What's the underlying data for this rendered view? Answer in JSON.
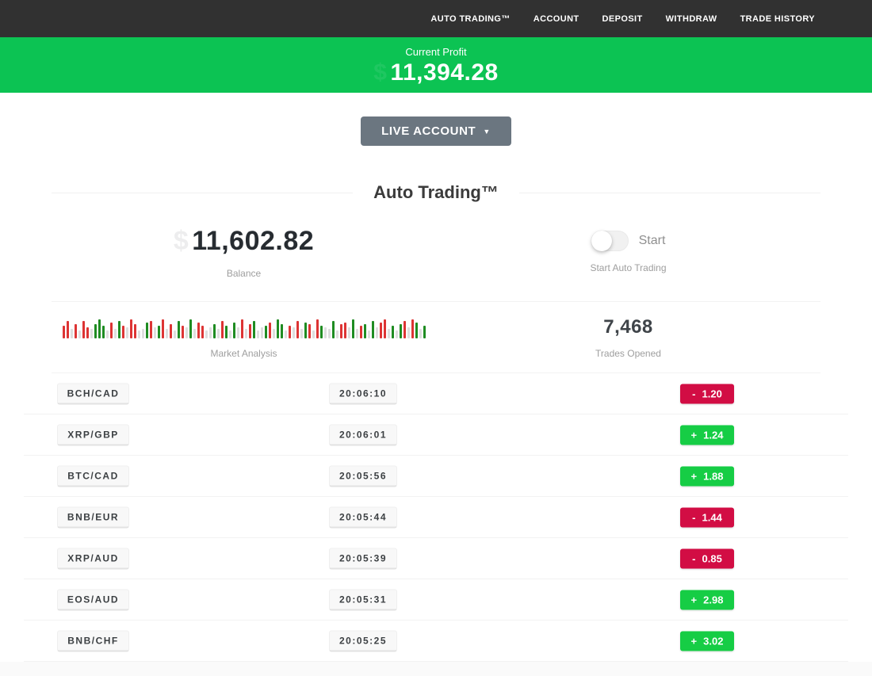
{
  "nav": {
    "items": [
      {
        "label": "AUTO TRADING™"
      },
      {
        "label": "ACCOUNT"
      },
      {
        "label": "DEPOSIT"
      },
      {
        "label": "WITHDRAW"
      },
      {
        "label": "TRADE HISTORY"
      }
    ]
  },
  "banner": {
    "label": "Current Profit",
    "currency_hint": "$",
    "value": "11,394.28"
  },
  "account_selector": {
    "label": "LIVE ACCOUNT",
    "caret": "▼"
  },
  "page": {
    "title": "Auto Trading™"
  },
  "stats": {
    "balance": {
      "currency_hint": "$",
      "value": "11,602.82",
      "label": "Balance"
    },
    "auto_trading": {
      "toggle_label": "Start",
      "caption": "Start Auto Trading",
      "state": "off"
    },
    "market": {
      "label": "Market Analysis"
    },
    "trades_opened": {
      "value": "7,468",
      "label": "Trades Opened"
    }
  },
  "market_chart": {
    "bars": [
      "r16",
      "r22",
      "n12",
      "r18",
      "n10",
      "r22",
      "r14",
      "n12",
      "g18",
      "g24",
      "g16",
      "n10",
      "r20",
      "n12",
      "g22",
      "r16",
      "n14",
      "r24",
      "r18",
      "n10",
      "n12",
      "g20",
      "r22",
      "n14",
      "g16",
      "r24",
      "n12",
      "r18",
      "n10",
      "g22",
      "r16",
      "n14",
      "g24",
      "n12",
      "r20",
      "r16",
      "n10",
      "n14",
      "g18",
      "n12",
      "r22",
      "g16",
      "n10",
      "g20",
      "n14",
      "r24",
      "n12",
      "r18",
      "g22",
      "n10",
      "n14",
      "g16",
      "r20",
      "n12",
      "g24",
      "g18",
      "n10",
      "r16",
      "n14",
      "r22",
      "n12",
      "g20",
      "r18",
      "n10",
      "r24",
      "g16",
      "n14",
      "n12",
      "g22",
      "n10",
      "r18",
      "r20",
      "n14",
      "g24",
      "n12",
      "r16",
      "g18",
      "n10",
      "g22",
      "n14",
      "r20",
      "r24",
      "n12",
      "g16",
      "n10",
      "g18",
      "r22",
      "n14",
      "r24",
      "g20",
      "n12",
      "g16"
    ]
  },
  "trades": {
    "rows": [
      {
        "pair": "BCH/CAD",
        "time": "20:06:10",
        "sign": "-",
        "value": "1.20",
        "direction": "down"
      },
      {
        "pair": "XRP/GBP",
        "time": "20:06:01",
        "sign": "+",
        "value": "1.24",
        "direction": "up"
      },
      {
        "pair": "BTC/CAD",
        "time": "20:05:56",
        "sign": "+",
        "value": "1.88",
        "direction": "up"
      },
      {
        "pair": "BNB/EUR",
        "time": "20:05:44",
        "sign": "-",
        "value": "1.44",
        "direction": "down"
      },
      {
        "pair": "XRP/AUD",
        "time": "20:05:39",
        "sign": "-",
        "value": "0.85",
        "direction": "down"
      },
      {
        "pair": "EOS/AUD",
        "time": "20:05:31",
        "sign": "+",
        "value": "2.98",
        "direction": "up"
      },
      {
        "pair": "BNB/CHF",
        "time": "20:05:25",
        "sign": "+",
        "value": "3.02",
        "direction": "up"
      }
    ]
  },
  "colors": {
    "nav_bg": "#313131",
    "banner_bg": "#0cc353",
    "button_bg": "#6b7680",
    "up": "#16cd45",
    "down": "#d20d44",
    "bar_red": "#dd3434",
    "bar_green": "#1f8c22",
    "bar_gray": "#dedede"
  }
}
